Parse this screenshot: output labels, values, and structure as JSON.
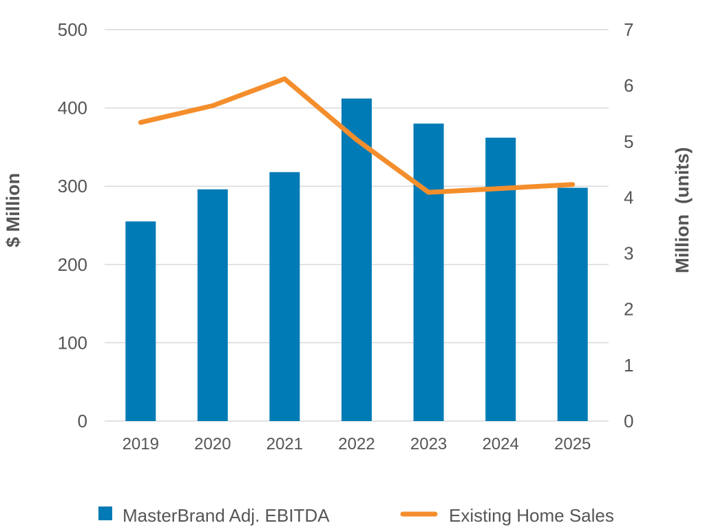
{
  "chart_data": {
    "type": "bar+line",
    "categories": [
      "2019",
      "2020",
      "2021",
      "2022",
      "2023",
      "2024",
      "2025"
    ],
    "series": [
      {
        "name": "MasterBrand Adj. EBITDA",
        "type": "bar",
        "axis": "left",
        "color": "#007bb6",
        "values": [
          255,
          296,
          318,
          412,
          380,
          362,
          298
        ]
      },
      {
        "name": "Existing Home Sales",
        "type": "line",
        "axis": "right",
        "color": "#f48e2c",
        "values": [
          5.34,
          5.64,
          6.12,
          5.03,
          4.09,
          4.16,
          4.23
        ]
      }
    ],
    "ylabel": "$ Million",
    "y2label": "Million  (units)",
    "ylim": [
      0,
      500
    ],
    "y2lim": [
      0,
      7
    ],
    "yticks": [
      "0",
      "100",
      "200",
      "300",
      "400",
      "500"
    ],
    "y2ticks": [
      "0",
      "1",
      "2",
      "3",
      "4",
      "5",
      "6",
      "7"
    ],
    "grid": true,
    "legend": "bottom"
  }
}
